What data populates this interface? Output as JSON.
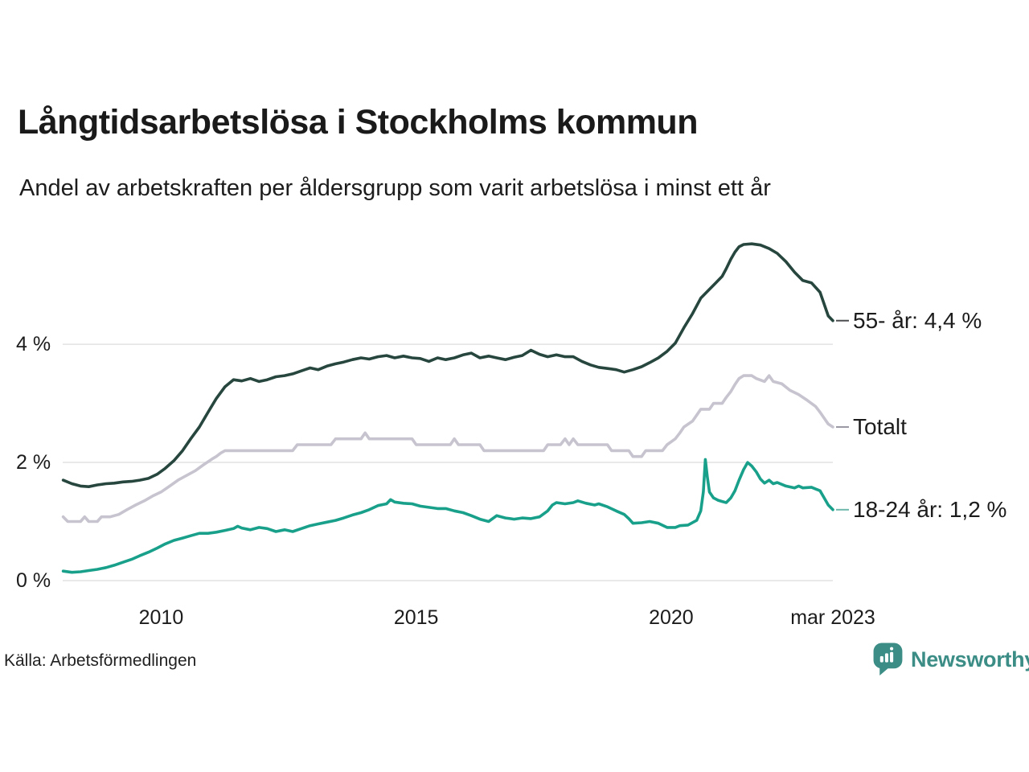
{
  "page": {
    "title": "Långtidsarbetslösa i Stockholms kommun",
    "subtitle": "Andel av arbetskraften per åldersgrupp som varit arbetslösa i minst ett år",
    "source": "Källa: Arbetsförmedlingen",
    "brand": {
      "name": "Newsworthy",
      "color": "#3b8d86",
      "icon": "bar-chart-speech-bubble-icon"
    }
  },
  "chart_data": {
    "type": "line",
    "title": "Långtidsarbetslösa i Stockholms kommun",
    "subtitle": "Andel av arbetskraften per åldersgrupp som varit arbetslösa i minst ett år",
    "unit": "%",
    "grid": "horizontal",
    "legend_position": "right-end-labels",
    "xlim": [
      2008.07,
      2023.17
    ],
    "ylim": [
      0,
      5.88
    ],
    "colors": {
      "grid": "#e2e2e4",
      "text": "#1c1c1c"
    },
    "y_ticks": [
      {
        "value": 0,
        "label": "0 %"
      },
      {
        "value": 2,
        "label": "2 %"
      },
      {
        "value": 4,
        "label": "4 %"
      }
    ],
    "x_ticks": [
      {
        "value": 2010,
        "label": "2010"
      },
      {
        "value": 2015,
        "label": "2015"
      },
      {
        "value": 2020,
        "label": "2020"
      },
      {
        "value": 2023.17,
        "label": "mar 2023"
      }
    ],
    "series": [
      {
        "name": "55- år",
        "end_label": "55- år: 4,4 %",
        "last_value": 4.4,
        "color": "#26463e",
        "connector_color": "#4a4c4e",
        "points": [
          [
            2008.08,
            1.7
          ],
          [
            2008.25,
            1.64
          ],
          [
            2008.42,
            1.6
          ],
          [
            2008.58,
            1.59
          ],
          [
            2008.75,
            1.62
          ],
          [
            2008.92,
            1.64
          ],
          [
            2009.08,
            1.65
          ],
          [
            2009.25,
            1.67
          ],
          [
            2009.42,
            1.68
          ],
          [
            2009.58,
            1.7
          ],
          [
            2009.75,
            1.73
          ],
          [
            2009.92,
            1.8
          ],
          [
            2010.08,
            1.9
          ],
          [
            2010.25,
            2.03
          ],
          [
            2010.42,
            2.2
          ],
          [
            2010.58,
            2.4
          ],
          [
            2010.75,
            2.6
          ],
          [
            2010.92,
            2.85
          ],
          [
            2011.08,
            3.08
          ],
          [
            2011.25,
            3.28
          ],
          [
            2011.42,
            3.4
          ],
          [
            2011.58,
            3.38
          ],
          [
            2011.75,
            3.42
          ],
          [
            2011.92,
            3.37
          ],
          [
            2012.08,
            3.4
          ],
          [
            2012.25,
            3.45
          ],
          [
            2012.42,
            3.47
          ],
          [
            2012.58,
            3.5
          ],
          [
            2012.75,
            3.55
          ],
          [
            2012.92,
            3.6
          ],
          [
            2013.08,
            3.57
          ],
          [
            2013.25,
            3.63
          ],
          [
            2013.42,
            3.67
          ],
          [
            2013.58,
            3.7
          ],
          [
            2013.75,
            3.74
          ],
          [
            2013.92,
            3.77
          ],
          [
            2014.08,
            3.75
          ],
          [
            2014.25,
            3.79
          ],
          [
            2014.42,
            3.81
          ],
          [
            2014.58,
            3.77
          ],
          [
            2014.75,
            3.8
          ],
          [
            2014.92,
            3.77
          ],
          [
            2015.08,
            3.76
          ],
          [
            2015.25,
            3.71
          ],
          [
            2015.42,
            3.77
          ],
          [
            2015.58,
            3.74
          ],
          [
            2015.75,
            3.77
          ],
          [
            2015.92,
            3.82
          ],
          [
            2016.08,
            3.85
          ],
          [
            2016.25,
            3.77
          ],
          [
            2016.42,
            3.8
          ],
          [
            2016.58,
            3.77
          ],
          [
            2016.75,
            3.74
          ],
          [
            2016.92,
            3.78
          ],
          [
            2017.08,
            3.81
          ],
          [
            2017.25,
            3.9
          ],
          [
            2017.42,
            3.83
          ],
          [
            2017.58,
            3.79
          ],
          [
            2017.75,
            3.82
          ],
          [
            2017.92,
            3.79
          ],
          [
            2018.08,
            3.79
          ],
          [
            2018.25,
            3.71
          ],
          [
            2018.42,
            3.65
          ],
          [
            2018.58,
            3.61
          ],
          [
            2018.75,
            3.59
          ],
          [
            2018.92,
            3.57
          ],
          [
            2019.08,
            3.53
          ],
          [
            2019.25,
            3.57
          ],
          [
            2019.42,
            3.62
          ],
          [
            2019.58,
            3.69
          ],
          [
            2019.75,
            3.77
          ],
          [
            2019.92,
            3.88
          ],
          [
            2020.08,
            4.02
          ],
          [
            2020.25,
            4.28
          ],
          [
            2020.42,
            4.52
          ],
          [
            2020.58,
            4.78
          ],
          [
            2020.75,
            4.93
          ],
          [
            2020.92,
            5.08
          ],
          [
            2021.0,
            5.15
          ],
          [
            2021.08,
            5.28
          ],
          [
            2021.17,
            5.44
          ],
          [
            2021.25,
            5.56
          ],
          [
            2021.33,
            5.65
          ],
          [
            2021.42,
            5.69
          ],
          [
            2021.58,
            5.7
          ],
          [
            2021.75,
            5.68
          ],
          [
            2021.92,
            5.62
          ],
          [
            2022.08,
            5.54
          ],
          [
            2022.25,
            5.4
          ],
          [
            2022.42,
            5.22
          ],
          [
            2022.58,
            5.08
          ],
          [
            2022.75,
            5.04
          ],
          [
            2022.92,
            4.88
          ],
          [
            2023.0,
            4.68
          ],
          [
            2023.08,
            4.48
          ],
          [
            2023.17,
            4.4
          ]
        ]
      },
      {
        "name": "Totalt",
        "end_label": "Totalt",
        "last_value": 2.6,
        "color": "#c7c4cf",
        "connector_color": "#9a98a2",
        "points": [
          [
            2008.08,
            1.08
          ],
          [
            2008.17,
            1.0
          ],
          [
            2008.42,
            1.0
          ],
          [
            2008.5,
            1.08
          ],
          [
            2008.58,
            1.0
          ],
          [
            2008.75,
            1.0
          ],
          [
            2008.83,
            1.08
          ],
          [
            2009.0,
            1.08
          ],
          [
            2009.17,
            1.12
          ],
          [
            2009.33,
            1.2
          ],
          [
            2009.5,
            1.28
          ],
          [
            2009.67,
            1.35
          ],
          [
            2009.83,
            1.43
          ],
          [
            2010.0,
            1.5
          ],
          [
            2010.17,
            1.6
          ],
          [
            2010.33,
            1.7
          ],
          [
            2010.5,
            1.78
          ],
          [
            2010.67,
            1.86
          ],
          [
            2010.83,
            1.96
          ],
          [
            2011.0,
            2.06
          ],
          [
            2011.08,
            2.1
          ],
          [
            2011.17,
            2.16
          ],
          [
            2011.25,
            2.2
          ],
          [
            2012.58,
            2.2
          ],
          [
            2012.67,
            2.3
          ],
          [
            2013.33,
            2.3
          ],
          [
            2013.42,
            2.4
          ],
          [
            2013.92,
            2.4
          ],
          [
            2014.0,
            2.5
          ],
          [
            2014.08,
            2.4
          ],
          [
            2014.92,
            2.4
          ],
          [
            2015.0,
            2.3
          ],
          [
            2015.67,
            2.3
          ],
          [
            2015.75,
            2.4
          ],
          [
            2015.83,
            2.3
          ],
          [
            2016.25,
            2.3
          ],
          [
            2016.33,
            2.2
          ],
          [
            2017.5,
            2.2
          ],
          [
            2017.58,
            2.3
          ],
          [
            2017.83,
            2.3
          ],
          [
            2017.92,
            2.4
          ],
          [
            2018.0,
            2.3
          ],
          [
            2018.08,
            2.4
          ],
          [
            2018.17,
            2.3
          ],
          [
            2018.75,
            2.3
          ],
          [
            2018.83,
            2.2
          ],
          [
            2019.17,
            2.2
          ],
          [
            2019.25,
            2.1
          ],
          [
            2019.42,
            2.1
          ],
          [
            2019.5,
            2.2
          ],
          [
            2019.83,
            2.2
          ],
          [
            2019.92,
            2.3
          ],
          [
            2020.08,
            2.4
          ],
          [
            2020.17,
            2.5
          ],
          [
            2020.25,
            2.6
          ],
          [
            2020.42,
            2.7
          ],
          [
            2020.5,
            2.8
          ],
          [
            2020.58,
            2.9
          ],
          [
            2020.75,
            2.9
          ],
          [
            2020.83,
            3.0
          ],
          [
            2021.0,
            3.0
          ],
          [
            2021.08,
            3.1
          ],
          [
            2021.17,
            3.2
          ],
          [
            2021.25,
            3.32
          ],
          [
            2021.33,
            3.42
          ],
          [
            2021.42,
            3.47
          ],
          [
            2021.58,
            3.47
          ],
          [
            2021.67,
            3.42
          ],
          [
            2021.83,
            3.37
          ],
          [
            2021.92,
            3.47
          ],
          [
            2022.0,
            3.37
          ],
          [
            2022.17,
            3.33
          ],
          [
            2022.33,
            3.22
          ],
          [
            2022.5,
            3.15
          ],
          [
            2022.67,
            3.05
          ],
          [
            2022.83,
            2.95
          ],
          [
            2022.92,
            2.85
          ],
          [
            2023.0,
            2.75
          ],
          [
            2023.08,
            2.65
          ],
          [
            2023.17,
            2.6
          ]
        ]
      },
      {
        "name": "18-24 år",
        "end_label": "18-24 år: 1,2 %",
        "last_value": 1.2,
        "color": "#19a08b",
        "connector_color": "#6fb9ac",
        "points": [
          [
            2008.08,
            0.16
          ],
          [
            2008.25,
            0.14
          ],
          [
            2008.42,
            0.15
          ],
          [
            2008.58,
            0.17
          ],
          [
            2008.75,
            0.19
          ],
          [
            2008.92,
            0.22
          ],
          [
            2009.08,
            0.26
          ],
          [
            2009.25,
            0.31
          ],
          [
            2009.42,
            0.36
          ],
          [
            2009.58,
            0.42
          ],
          [
            2009.75,
            0.48
          ],
          [
            2009.92,
            0.55
          ],
          [
            2010.08,
            0.62
          ],
          [
            2010.25,
            0.68
          ],
          [
            2010.42,
            0.72
          ],
          [
            2010.58,
            0.76
          ],
          [
            2010.75,
            0.8
          ],
          [
            2010.92,
            0.8
          ],
          [
            2011.08,
            0.82
          ],
          [
            2011.25,
            0.85
          ],
          [
            2011.42,
            0.88
          ],
          [
            2011.5,
            0.92
          ],
          [
            2011.58,
            0.89
          ],
          [
            2011.75,
            0.86
          ],
          [
            2011.92,
            0.9
          ],
          [
            2012.08,
            0.88
          ],
          [
            2012.25,
            0.83
          ],
          [
            2012.42,
            0.86
          ],
          [
            2012.58,
            0.83
          ],
          [
            2012.75,
            0.88
          ],
          [
            2012.92,
            0.93
          ],
          [
            2013.08,
            0.96
          ],
          [
            2013.25,
            0.99
          ],
          [
            2013.42,
            1.02
          ],
          [
            2013.58,
            1.06
          ],
          [
            2013.75,
            1.11
          ],
          [
            2013.92,
            1.15
          ],
          [
            2014.08,
            1.2
          ],
          [
            2014.25,
            1.27
          ],
          [
            2014.42,
            1.3
          ],
          [
            2014.5,
            1.37
          ],
          [
            2014.58,
            1.33
          ],
          [
            2014.75,
            1.31
          ],
          [
            2014.92,
            1.3
          ],
          [
            2015.08,
            1.26
          ],
          [
            2015.25,
            1.24
          ],
          [
            2015.42,
            1.22
          ],
          [
            2015.58,
            1.22
          ],
          [
            2015.75,
            1.18
          ],
          [
            2015.92,
            1.15
          ],
          [
            2016.08,
            1.1
          ],
          [
            2016.25,
            1.04
          ],
          [
            2016.42,
            1.0
          ],
          [
            2016.58,
            1.1
          ],
          [
            2016.75,
            1.06
          ],
          [
            2016.92,
            1.04
          ],
          [
            2017.08,
            1.06
          ],
          [
            2017.25,
            1.05
          ],
          [
            2017.42,
            1.08
          ],
          [
            2017.58,
            1.18
          ],
          [
            2017.67,
            1.28
          ],
          [
            2017.75,
            1.32
          ],
          [
            2017.92,
            1.3
          ],
          [
            2018.08,
            1.32
          ],
          [
            2018.17,
            1.35
          ],
          [
            2018.33,
            1.31
          ],
          [
            2018.5,
            1.28
          ],
          [
            2018.58,
            1.3
          ],
          [
            2018.75,
            1.25
          ],
          [
            2018.92,
            1.18
          ],
          [
            2019.08,
            1.12
          ],
          [
            2019.17,
            1.05
          ],
          [
            2019.25,
            0.97
          ],
          [
            2019.42,
            0.98
          ],
          [
            2019.58,
            1.0
          ],
          [
            2019.75,
            0.97
          ],
          [
            2019.92,
            0.9
          ],
          [
            2020.08,
            0.9
          ],
          [
            2020.17,
            0.93
          ],
          [
            2020.33,
            0.94
          ],
          [
            2020.5,
            1.02
          ],
          [
            2020.58,
            1.18
          ],
          [
            2020.63,
            1.5
          ],
          [
            2020.67,
            2.05
          ],
          [
            2020.71,
            1.75
          ],
          [
            2020.75,
            1.5
          ],
          [
            2020.83,
            1.4
          ],
          [
            2020.92,
            1.36
          ],
          [
            2021.0,
            1.34
          ],
          [
            2021.08,
            1.32
          ],
          [
            2021.17,
            1.4
          ],
          [
            2021.25,
            1.52
          ],
          [
            2021.33,
            1.7
          ],
          [
            2021.42,
            1.88
          ],
          [
            2021.5,
            2.0
          ],
          [
            2021.58,
            1.94
          ],
          [
            2021.67,
            1.84
          ],
          [
            2021.75,
            1.72
          ],
          [
            2021.83,
            1.65
          ],
          [
            2021.92,
            1.7
          ],
          [
            2022.0,
            1.64
          ],
          [
            2022.08,
            1.66
          ],
          [
            2022.25,
            1.6
          ],
          [
            2022.42,
            1.57
          ],
          [
            2022.5,
            1.6
          ],
          [
            2022.58,
            1.57
          ],
          [
            2022.75,
            1.58
          ],
          [
            2022.92,
            1.52
          ],
          [
            2023.0,
            1.4
          ],
          [
            2023.08,
            1.28
          ],
          [
            2023.17,
            1.2
          ]
        ]
      }
    ]
  }
}
